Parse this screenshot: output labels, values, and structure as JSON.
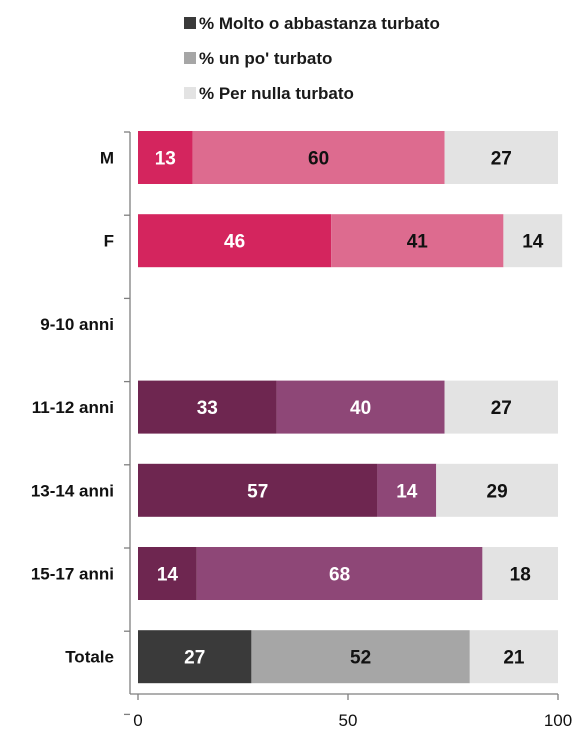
{
  "chart_data": {
    "type": "bar",
    "orientation": "horizontal",
    "stacked": true,
    "xlim": [
      0,
      100
    ],
    "xticks": [
      0,
      50,
      100
    ],
    "grid": false,
    "legend_position": "top",
    "legend": [
      {
        "name": "% Molto o abbastanza turbato",
        "color": "#3a3a3a"
      },
      {
        "name": "% un po' turbato",
        "color": "#a6a6a6"
      },
      {
        "name": "% Per nulla turbato",
        "color": "#e3e3e3"
      }
    ],
    "categories": [
      "M",
      "F",
      "9-10 anni",
      "11-12 anni",
      "13-14 anni",
      "15-17 anni",
      "Totale"
    ],
    "rows": [
      {
        "category": "M",
        "values": [
          13,
          60,
          27
        ],
        "colors": [
          "#d4255e",
          "#dd6b8f",
          "#e3e3e3"
        ]
      },
      {
        "category": "F",
        "values": [
          46,
          41,
          14
        ],
        "colors": [
          "#d4255e",
          "#dd6b8f",
          "#e3e3e3"
        ]
      },
      {
        "category": "9-10 anni",
        "values": [],
        "colors": []
      },
      {
        "category": "11-12 anni",
        "values": [
          33,
          40,
          27
        ],
        "colors": [
          "#6e2650",
          "#8e4777",
          "#e3e3e3"
        ]
      },
      {
        "category": "13-14 anni",
        "values": [
          57,
          14,
          29
        ],
        "colors": [
          "#6e2650",
          "#8e4777",
          "#e3e3e3"
        ]
      },
      {
        "category": "15-17 anni",
        "values": [
          14,
          68,
          18
        ],
        "colors": [
          "#6e2650",
          "#8e4777",
          "#e3e3e3"
        ]
      },
      {
        "category": "Totale",
        "values": [
          27,
          52,
          21
        ],
        "colors": [
          "#3a3a3a",
          "#a6a6a6",
          "#e3e3e3"
        ]
      }
    ]
  }
}
